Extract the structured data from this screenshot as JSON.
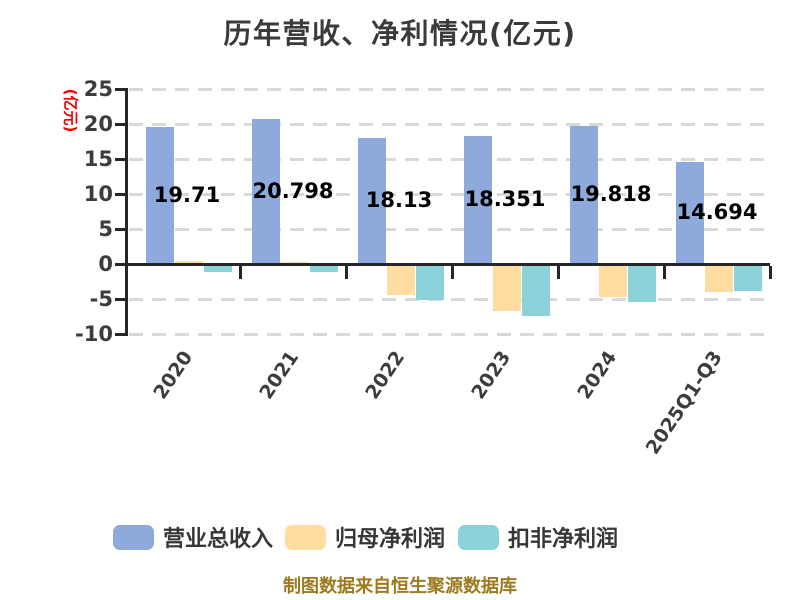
{
  "footer": "制图数据来自恒生聚源数据库",
  "colors": {
    "revenue_blue": "#8EA9DB",
    "net_profit_orange": "#FFDDA1",
    "deducted_profit_teal": "#8CD3D9",
    "axis": "#262626",
    "grid": "#D9D9D9",
    "title_text": "#3A3A3A",
    "tick_text": "#3C3C3C",
    "ylabel_red": "#EE0000",
    "footer_gold": "#9C7B1E"
  },
  "chart_data": {
    "type": "bar",
    "title": "历年营收、净利情况(亿元)",
    "ylabel": "(亿元)",
    "xlabel": "",
    "categories": [
      "2020",
      "2021",
      "2022",
      "2023",
      "2024",
      "2025Q1-Q3"
    ],
    "series": [
      {
        "name": "营业总收入",
        "color": "#8EA9DB",
        "values": [
          19.71,
          20.798,
          18.13,
          18.351,
          19.818,
          14.694
        ],
        "labels": [
          "19.71",
          "20.798",
          "18.13",
          "18.351",
          "19.818",
          "14.694"
        ]
      },
      {
        "name": "归母净利润",
        "color": "#FFDDA1",
        "values": [
          0.5,
          0.4,
          -4.3,
          -6.6,
          -4.6,
          -3.9
        ]
      },
      {
        "name": "扣非净利润",
        "color": "#8CD3D9",
        "values": [
          -1.1,
          -1.1,
          -5.0,
          -7.3,
          -5.3,
          -3.8
        ]
      }
    ],
    "yticks": [
      25,
      20,
      15,
      10,
      5,
      0,
      -5,
      -10
    ],
    "ylim": [
      -10,
      25
    ],
    "grid": "horizontal-dashed",
    "legend_position": "bottom"
  },
  "legend": {
    "items": [
      {
        "label": "营业总收入",
        "color": "#8EA9DB"
      },
      {
        "label": "归母净利润",
        "color": "#FFDDA1"
      },
      {
        "label": "扣非净利润",
        "color": "#8CD3D9"
      }
    ]
  }
}
